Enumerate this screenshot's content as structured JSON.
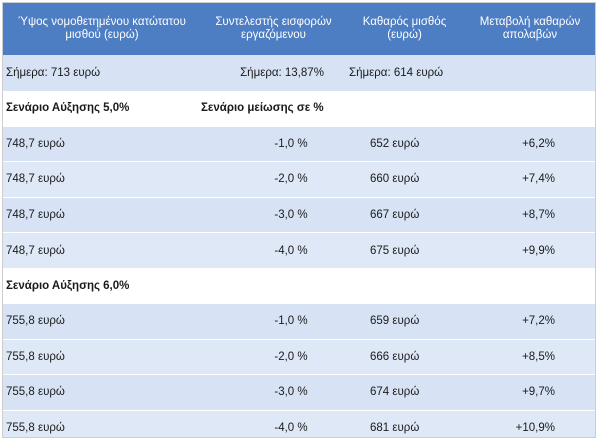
{
  "headers": [
    "Ύψος νομοθετημένου κατώτατου μισθού (ευρώ)",
    "Συντελεστής εισφορών εργαζόμενου",
    "Καθαρός μισθός (ευρώ)",
    "Μεταβολή καθαρών απολαβών"
  ],
  "today": {
    "salary": "Σήμερα: 713 ευρώ",
    "rate": "Σήμερα: 13,87%",
    "net": "Σήμερα: 614 ευρώ"
  },
  "scenario_1": {
    "title": "Σενάριο Αύξησης 5,0%",
    "subtitle": "Σενάριο μείωσης σε %",
    "rows": [
      {
        "salary": "748,7 ευρώ",
        "rate": "-1,0 %",
        "net": "652 ευρώ",
        "change": "+6,2%"
      },
      {
        "salary": "748,7 ευρώ",
        "rate": "-2,0 %",
        "net": "660 ευρώ",
        "change": "+7,4%"
      },
      {
        "salary": "748,7 ευρώ",
        "rate": "-3,0 %",
        "net": "667 ευρώ",
        "change": "+8,7%"
      },
      {
        "salary": "748,7 ευρώ",
        "rate": "-4,0 %",
        "net": "675 ευρώ",
        "change": "+9,9%"
      }
    ]
  },
  "scenario_2": {
    "title": "Σενάριο Αύξησης 6,0%",
    "rows": [
      {
        "salary": "755,8 ευρώ",
        "rate": "-1,0 %",
        "net": "659 ευρώ",
        "change": "+7,2%"
      },
      {
        "salary": "755,8 ευρώ",
        "rate": "-2,0 %",
        "net": "666 ευρώ",
        "change": "+8,5%"
      },
      {
        "salary": "755,8 ευρώ",
        "rate": "-3,0 %",
        "net": "674 ευρώ",
        "change": "+9,7%"
      },
      {
        "salary": "755,8 ευρώ",
        "rate": "-4,0 %",
        "net": "681 ευρώ",
        "change": "+10,9%"
      }
    ]
  },
  "colors": {
    "header_bg": "#4d7dc2",
    "header_text": "#ffffff",
    "row_bg": "#d7e3f5",
    "scenario_bg": "#ffffff"
  }
}
